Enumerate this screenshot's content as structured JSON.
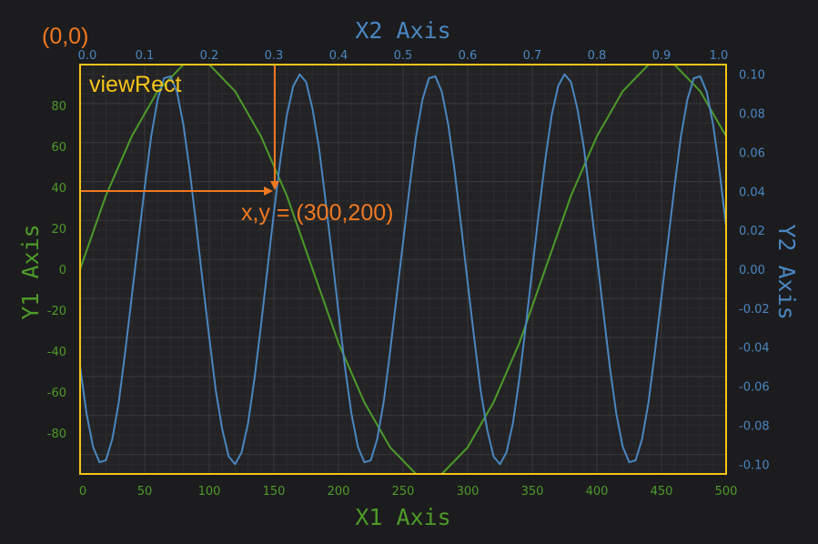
{
  "chart_data": {
    "type": "line",
    "x_axes": {
      "x1": {
        "label": "X1 Axis",
        "range": [
          0,
          500
        ],
        "ticks": [
          0,
          50,
          100,
          150,
          200,
          250,
          300,
          350,
          400,
          450,
          500
        ],
        "tick_labels": [
          "0",
          "50",
          "100",
          "150",
          "200",
          "250",
          "300",
          "350",
          "400",
          "450",
          "500"
        ],
        "position": "bottom"
      },
      "x2": {
        "label": "X2 Axis",
        "range": [
          0.0,
          1.0
        ],
        "ticks": [
          0.0,
          0.1,
          0.2,
          0.3,
          0.4,
          0.5,
          0.6,
          0.7,
          0.8,
          0.9,
          1.0
        ],
        "tick_labels": [
          "0.0",
          "0.1",
          "0.2",
          "0.3",
          "0.4",
          "0.5",
          "0.6",
          "0.7",
          "0.8",
          "0.9",
          "1.0"
        ],
        "position": "top"
      }
    },
    "y_axes": {
      "y1": {
        "label": "Y1 Axis",
        "range": [
          -100,
          100
        ],
        "ticks": [
          -80,
          -60,
          -40,
          -20,
          0,
          20,
          40,
          60,
          80
        ],
        "tick_labels": [
          "-80",
          "-60",
          "-40",
          "-20",
          "0",
          "20",
          "40",
          "60",
          "80"
        ],
        "position": "left"
      },
      "y2": {
        "label": "Y2 Axis",
        "range": [
          -0.105,
          0.105
        ],
        "ticks": [
          -0.1,
          -0.08,
          -0.06,
          -0.04,
          -0.02,
          0.0,
          0.02,
          0.04,
          0.06,
          0.08,
          0.1
        ],
        "tick_labels": [
          "-0.10",
          "-0.08",
          "-0.06",
          "-0.04",
          "-0.02",
          "0.00",
          "0.02",
          "0.04",
          "0.06",
          "0.08",
          "0.10"
        ],
        "position": "right"
      }
    },
    "series": [
      {
        "axes": [
          "x1",
          "y1"
        ],
        "color": "#4e9a2a",
        "x": [
          0,
          20,
          40,
          60,
          80,
          100,
          120,
          140,
          160,
          180,
          200,
          220,
          240,
          260,
          280,
          300,
          320,
          340,
          360,
          380,
          400,
          420,
          440,
          460,
          480,
          500
        ],
        "y": [
          0,
          36,
          65,
          87,
          100,
          100,
          87,
          65,
          36,
          0,
          -36,
          -65,
          -87,
          -100,
          -100,
          -87,
          -65,
          -36,
          0,
          36,
          65,
          87,
          100,
          100,
          87,
          65
        ]
      },
      {
        "axes": [
          "x2",
          "y2"
        ],
        "color": "#4a86c0",
        "x": [
          0.0,
          0.01,
          0.02,
          0.03,
          0.04,
          0.05,
          0.06,
          0.07,
          0.08,
          0.09,
          0.1,
          0.11,
          0.12,
          0.13,
          0.14,
          0.15,
          0.16,
          0.17,
          0.18,
          0.19,
          0.2,
          0.21,
          0.22,
          0.23,
          0.24,
          0.25,
          0.26,
          0.27,
          0.28,
          0.29,
          0.3,
          0.31,
          0.32,
          0.33,
          0.34,
          0.35,
          0.36,
          0.37,
          0.38,
          0.39,
          0.4,
          0.41,
          0.42,
          0.43,
          0.44,
          0.45,
          0.46,
          0.47,
          0.48,
          0.49,
          0.5,
          0.51,
          0.52,
          0.53,
          0.54,
          0.55,
          0.56,
          0.57,
          0.58,
          0.59,
          0.6,
          0.61,
          0.62,
          0.63,
          0.64,
          0.65,
          0.66,
          0.67,
          0.68,
          0.69,
          0.7,
          0.71,
          0.72,
          0.73,
          0.74,
          0.75,
          0.76,
          0.77,
          0.78,
          0.79,
          0.8,
          0.81,
          0.82,
          0.83,
          0.84,
          0.85,
          0.86,
          0.87,
          0.88,
          0.89,
          0.9,
          0.91,
          0.92,
          0.93,
          0.94,
          0.95,
          0.96,
          0.97,
          0.98,
          0.99,
          1.0
        ],
        "y": [
          -0.05,
          -0.074,
          -0.091,
          -0.099,
          -0.098,
          -0.087,
          -0.068,
          -0.042,
          -0.014,
          0.014,
          0.042,
          0.068,
          0.087,
          0.098,
          0.099,
          0.091,
          0.074,
          0.05,
          0.022,
          -0.007,
          -0.035,
          -0.062,
          -0.082,
          -0.096,
          -0.1,
          -0.094,
          -0.079,
          -0.056,
          -0.029,
          0.0,
          0.029,
          0.056,
          0.079,
          0.094,
          0.1,
          0.096,
          0.082,
          0.062,
          0.035,
          0.007,
          -0.022,
          -0.05,
          -0.074,
          -0.091,
          -0.099,
          -0.098,
          -0.087,
          -0.068,
          -0.042,
          -0.014,
          0.014,
          0.042,
          0.068,
          0.087,
          0.098,
          0.099,
          0.091,
          0.074,
          0.05,
          0.022,
          -0.007,
          -0.035,
          -0.062,
          -0.082,
          -0.096,
          -0.1,
          -0.094,
          -0.079,
          -0.056,
          -0.029,
          0.0,
          0.029,
          0.056,
          0.079,
          0.094,
          0.1,
          0.096,
          0.082,
          0.062,
          0.035,
          0.007,
          -0.022,
          -0.05,
          -0.074,
          -0.091,
          -0.099,
          -0.098,
          -0.087,
          -0.068,
          -0.042,
          -0.014,
          0.014,
          0.042,
          0.068,
          0.087,
          0.098,
          0.099,
          0.091,
          0.074,
          0.05,
          0.022
        ]
      }
    ],
    "grid": true,
    "annotations": {
      "origin_label": "(0,0)",
      "view_rect_label": "viewRect",
      "point_label": "x,y = (300,200)"
    },
    "colors": {
      "background": "#1c1c1e",
      "plot_background": "#232325",
      "grid": "#3a3a3c",
      "view_rect": "#f5c518",
      "annotation": "#f07820",
      "x1_y1": "#4e9a2a",
      "x2_y2": "#4a86c0"
    }
  }
}
